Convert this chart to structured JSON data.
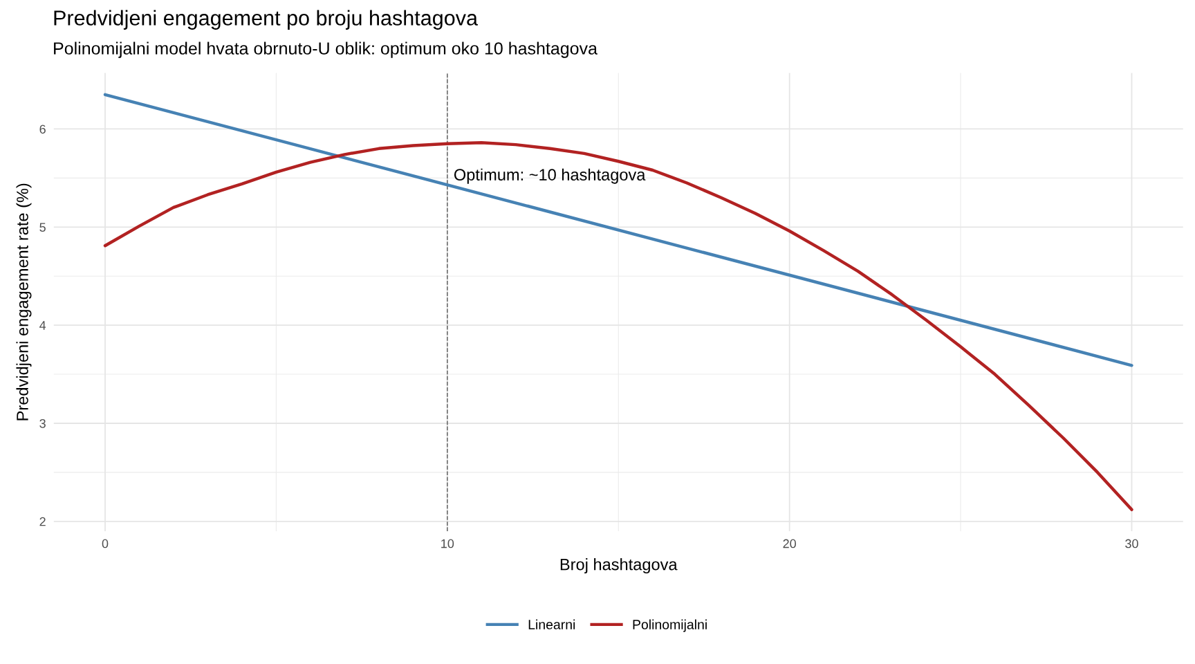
{
  "chart_data": {
    "type": "line",
    "title": "Predvidjeni engagement po broju hashtagova",
    "subtitle": "Polinomijalni model hvata obrnuto-U oblik: optimum oko 10 hashtagova",
    "xlabel": "Broj hashtagova",
    "ylabel": "Predvidjeni engagement rate (%)",
    "series": [
      {
        "name": "Linearni",
        "color": "#4682b4",
        "x": [
          0,
          30
        ],
        "values": [
          6.35,
          3.59
        ]
      },
      {
        "name": "Polinomijalni",
        "color": "#b22222",
        "x": [
          0,
          1,
          2,
          3,
          4,
          5,
          6,
          7,
          8,
          9,
          10,
          11,
          12,
          13,
          14,
          15,
          16,
          17,
          18,
          19,
          20,
          21,
          22,
          23,
          24,
          25,
          26,
          27,
          28,
          29,
          30
        ],
        "values": [
          4.81,
          5.01,
          5.2,
          5.33,
          5.44,
          5.56,
          5.66,
          5.74,
          5.8,
          5.83,
          5.85,
          5.86,
          5.84,
          5.8,
          5.75,
          5.67,
          5.58,
          5.45,
          5.3,
          5.14,
          4.96,
          4.76,
          4.55,
          4.31,
          4.05,
          3.78,
          3.5,
          3.18,
          2.85,
          2.5,
          2.12
        ]
      }
    ],
    "xlim": [
      -1.5,
      31.5
    ],
    "xticks": [
      0,
      10,
      20,
      30
    ],
    "ylim": [
      1.9,
      6.57
    ],
    "yticks": [
      2,
      3,
      4,
      5,
      6
    ],
    "ref_lines": [
      {
        "axis": "x",
        "value": 10,
        "color": "#666666",
        "line_style": "dashed"
      }
    ],
    "annotations": [
      "Optimum: ~10 hashtagova"
    ],
    "grid": true,
    "legend": "bottom",
    "line_style": "solid"
  }
}
